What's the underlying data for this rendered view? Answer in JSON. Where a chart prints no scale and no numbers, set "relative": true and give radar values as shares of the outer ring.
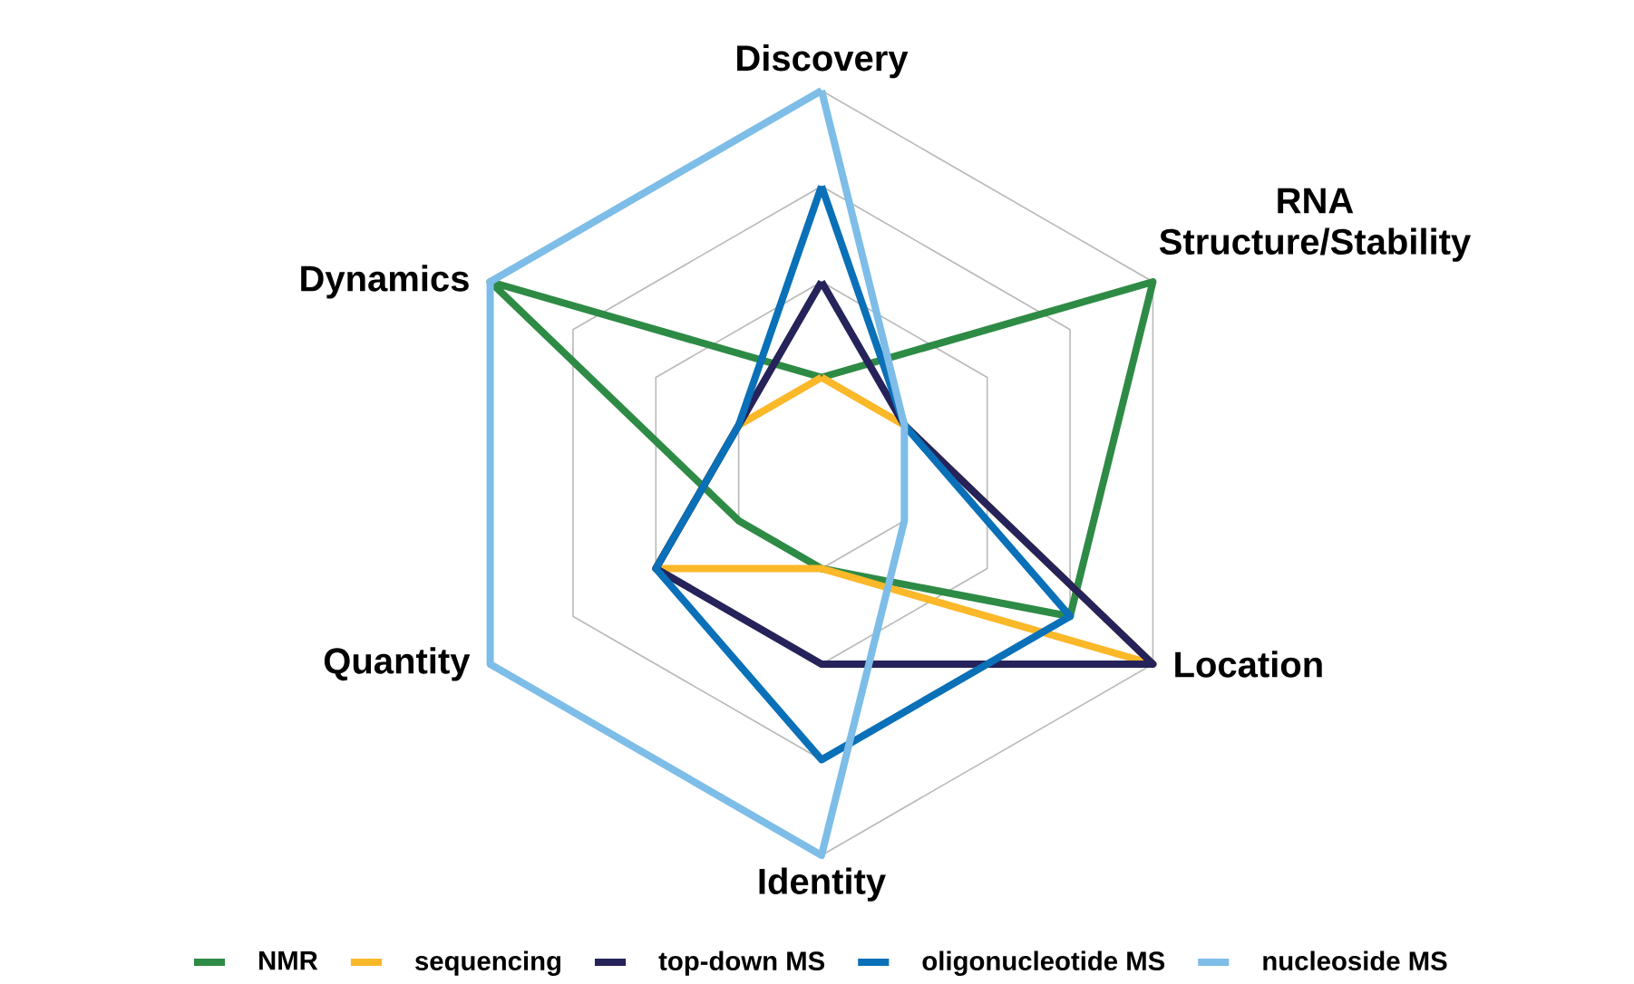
{
  "chart_data": {
    "type": "radar",
    "relative": true,
    "grid": true,
    "legend": "bottom",
    "marker": "none",
    "line_style": "solid",
    "categories": [
      "Discovery",
      "RNA Structure/Stability",
      "Location",
      "Identity",
      "Quantity",
      "Dynamics"
    ],
    "series": [
      {
        "name": "NMR",
        "color": "#2e8b45",
        "values": [
          0.25,
          1,
          0.75,
          0.25,
          0.25,
          1
        ]
      },
      {
        "name": "sequencing",
        "color": "#fbb829",
        "values": [
          0.25,
          0.25,
          1,
          0.25,
          0.5,
          0.25
        ]
      },
      {
        "name": "top-down MS",
        "color": "#25235a",
        "values": [
          0.5,
          0.25,
          1,
          0.5,
          0.5,
          0.25
        ]
      },
      {
        "name": "oligonucleotide MS",
        "color": "#0a70b8",
        "values": [
          0.75,
          0.25,
          0.75,
          0.75,
          0.5,
          0.25
        ]
      },
      {
        "name": "nucleoside MS",
        "color": "#7dbde8",
        "values": [
          1,
          0.25,
          0.25,
          1,
          1,
          1
        ]
      }
    ]
  }
}
